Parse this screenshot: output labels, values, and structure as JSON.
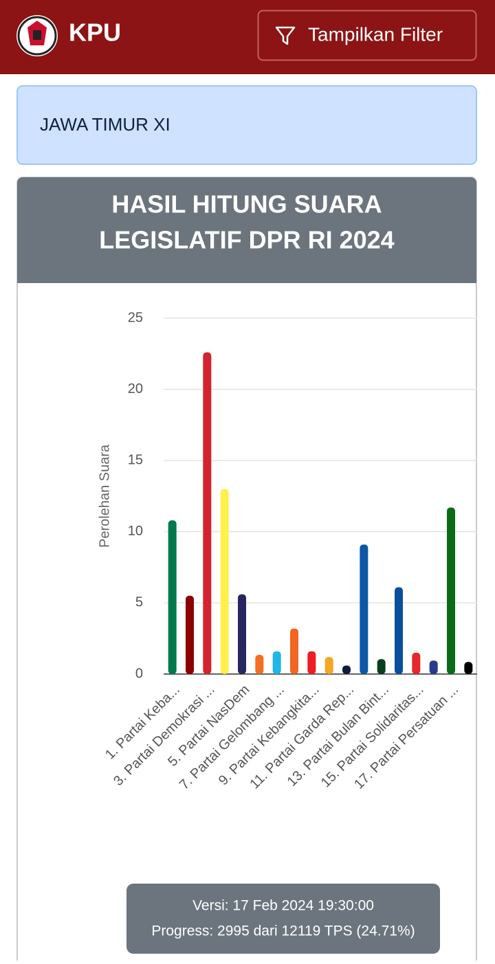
{
  "header": {
    "brand": "KPU",
    "filter_button": "Tampilkan Filter"
  },
  "region": "JAWA TIMUR XI",
  "card_title": [
    "HASIL HITUNG SUARA",
    "LEGISLATIF DPR RI 2024"
  ],
  "chart_data": {
    "type": "bar",
    "y_label": "Perolehan Suara",
    "categories": [
      "1. Partai Keba...",
      null,
      "3. Partai Demokrasi ...",
      null,
      "5. Partai NasDem",
      null,
      "7. Partai Gelombang ...",
      null,
      "9. Partai Kebangkita...",
      null,
      "11. Partai Garda Rep...",
      null,
      "13. Partai Bulan Bint...",
      null,
      "15. Partai Solidaritas...",
      null,
      "17. Partai Persatuan ...",
      null
    ],
    "values": [
      10.8,
      5.5,
      22.6,
      13.0,
      5.6,
      1.35,
      1.6,
      3.2,
      1.6,
      1.2,
      0.6,
      9.1,
      1.05,
      6.1,
      1.5,
      0.95,
      11.7,
      0.85
    ],
    "colors": [
      "#00794c",
      "#8b0000",
      "#d3232e",
      "#fff04c",
      "#27265f",
      "#f26f21",
      "#1fb6e8",
      "#f26522",
      "#ee1c25",
      "#f5a623",
      "#0f1c3f",
      "#0d57a6",
      "#0b3d1f",
      "#0a4f9e",
      "#e4282d",
      "#283a8a",
      "#0a6b17",
      "#000000"
    ],
    "ylim": [
      0,
      25
    ],
    "yticks": [
      0,
      5,
      10,
      15,
      20,
      25
    ],
    "grid": true
  },
  "footer": {
    "version": "Versi: 17 Feb 2024 19:30:00",
    "progress": "Progress: 2995 dari 12119 TPS (24.71%)"
  }
}
